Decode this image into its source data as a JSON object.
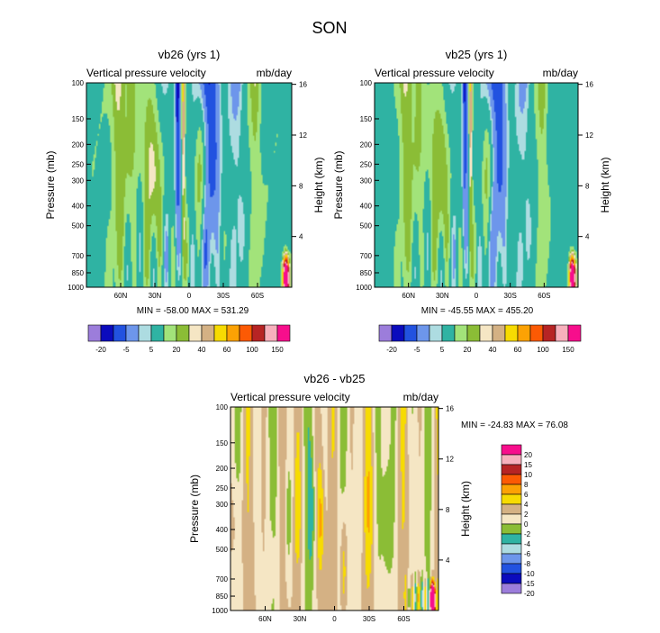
{
  "page_title": "SON",
  "colors": {
    "pal": [
      "#9c7ddb",
      "#0b0bbd",
      "#2252e0",
      "#6d96eb",
      "#addce1",
      "#2fb3a3",
      "#a2e37a",
      "#8bbd36",
      "#f5e6c4",
      "#d4b184",
      "#f7db02",
      "#fca204",
      "#fc5a04",
      "#b72424",
      "#f7b0bc",
      "#f70e8c"
    ],
    "diff_pal": [
      "#9c7ddb",
      "#0b0bbd",
      "#2252e0",
      "#6d96eb",
      "#addce1",
      "#2fb3a3",
      "#8bbd36",
      "#f5e6c4",
      "#d4b184",
      "#f7db02",
      "#fca204",
      "#fc5a04",
      "#b72424",
      "#f7b0bc",
      "#f70e8c"
    ]
  },
  "chart_data": [
    {
      "id": "vb26",
      "type": "heatmap",
      "title": "vb26 (yrs 1)",
      "left_subtitle": "Vertical pressure velocity",
      "right_subtitle": "mb/day",
      "ylabel": "Pressure (mb)",
      "ylabel_right": "Height (km)",
      "x_ticks": [
        {
          "lat": 60,
          "label": "60N"
        },
        {
          "lat": 30,
          "label": "30N"
        },
        {
          "lat": 0,
          "label": "0"
        },
        {
          "lat": -30,
          "label": "30S"
        },
        {
          "lat": -60,
          "label": "60S"
        }
      ],
      "xlim": [
        90,
        -90
      ],
      "p_ticks": [
        {
          "p": 100,
          "label": "100"
        },
        {
          "p": 150,
          "label": "150"
        },
        {
          "p": 200,
          "label": "200"
        },
        {
          "p": 250,
          "label": "250"
        },
        {
          "p": 300,
          "label": "300"
        },
        {
          "p": 400,
          "label": "400"
        },
        {
          "p": 500,
          "label": "500"
        },
        {
          "p": 700,
          "label": "700"
        },
        {
          "p": 850,
          "label": "850"
        },
        {
          "p": 1000,
          "label": "1000"
        }
      ],
      "ylim": [
        1000,
        100
      ],
      "h_ticks": [
        {
          "km": 16,
          "label": "16"
        },
        {
          "km": 12,
          "label": "12"
        },
        {
          "km": 8,
          "label": "8"
        },
        {
          "km": 4,
          "label": "4"
        }
      ],
      "stats": "MIN = -58.00  MAX = 531.29",
      "contour_levels": [
        -20,
        -15,
        -10,
        -5,
        -2,
        5,
        10,
        15,
        20,
        30,
        40,
        50,
        60,
        80,
        100,
        120,
        150
      ],
      "colorbar_labels": [
        "-20",
        "-5",
        "5",
        "20",
        "40",
        "60",
        "100",
        "150"
      ]
    },
    {
      "id": "vb25",
      "type": "heatmap",
      "title": "vb25 (yrs 1)",
      "left_subtitle": "Vertical pressure velocity",
      "right_subtitle": "mb/day",
      "ylabel": "Pressure (mb)",
      "ylabel_right": "Height (km)",
      "x_ticks": [
        {
          "lat": 60,
          "label": "60N"
        },
        {
          "lat": 30,
          "label": "30N"
        },
        {
          "lat": 0,
          "label": "0"
        },
        {
          "lat": -30,
          "label": "30S"
        },
        {
          "lat": -60,
          "label": "60S"
        }
      ],
      "xlim": [
        90,
        -90
      ],
      "p_ticks": [
        {
          "p": 100,
          "label": "100"
        },
        {
          "p": 150,
          "label": "150"
        },
        {
          "p": 200,
          "label": "200"
        },
        {
          "p": 250,
          "label": "250"
        },
        {
          "p": 300,
          "label": "300"
        },
        {
          "p": 400,
          "label": "400"
        },
        {
          "p": 500,
          "label": "500"
        },
        {
          "p": 700,
          "label": "700"
        },
        {
          "p": 850,
          "label": "850"
        },
        {
          "p": 1000,
          "label": "1000"
        }
      ],
      "ylim": [
        1000,
        100
      ],
      "h_ticks": [
        {
          "km": 16,
          "label": "16"
        },
        {
          "km": 12,
          "label": "12"
        },
        {
          "km": 8,
          "label": "8"
        },
        {
          "km": 4,
          "label": "4"
        }
      ],
      "stats": "MIN = -45.55  MAX = 455.20",
      "contour_levels": [
        -20,
        -15,
        -10,
        -5,
        -2,
        5,
        10,
        15,
        20,
        30,
        40,
        50,
        60,
        80,
        100,
        120,
        150
      ],
      "colorbar_labels": [
        "-20",
        "-5",
        "5",
        "20",
        "40",
        "60",
        "100",
        "150"
      ]
    },
    {
      "id": "diff",
      "type": "heatmap",
      "title": "vb26 - vb25",
      "left_subtitle": "Vertical pressure velocity",
      "right_subtitle": "mb/day",
      "ylabel": "Pressure (mb)",
      "ylabel_right": "Height (km)",
      "x_ticks": [
        {
          "lat": 60,
          "label": "60N"
        },
        {
          "lat": 30,
          "label": "30N"
        },
        {
          "lat": 0,
          "label": "0"
        },
        {
          "lat": -30,
          "label": "30S"
        },
        {
          "lat": -60,
          "label": "60S"
        }
      ],
      "xlim": [
        90,
        -90
      ],
      "p_ticks": [
        {
          "p": 100,
          "label": "100"
        },
        {
          "p": 150,
          "label": "150"
        },
        {
          "p": 200,
          "label": "200"
        },
        {
          "p": 250,
          "label": "250"
        },
        {
          "p": 300,
          "label": "300"
        },
        {
          "p": 400,
          "label": "400"
        },
        {
          "p": 500,
          "label": "500"
        },
        {
          "p": 700,
          "label": "700"
        },
        {
          "p": 850,
          "label": "850"
        },
        {
          "p": 1000,
          "label": "1000"
        }
      ],
      "ylim": [
        1000,
        100
      ],
      "h_ticks": [
        {
          "km": 16,
          "label": "16"
        },
        {
          "km": 12,
          "label": "12"
        },
        {
          "km": 8,
          "label": "8"
        },
        {
          "km": 4,
          "label": "4"
        }
      ],
      "stats": "MIN = -24.83  MAX = 76.08",
      "contour_levels": [
        -20,
        -15,
        -10,
        -8,
        -6,
        -4,
        -2,
        0,
        2,
        4,
        6,
        8,
        10,
        15,
        20
      ],
      "colorbar_labels": [
        "20",
        "15",
        "10",
        "8",
        "6",
        "4",
        "2",
        "0",
        "-2",
        "-4",
        "-6",
        "-8",
        "-10",
        "-15",
        "-20"
      ]
    }
  ]
}
